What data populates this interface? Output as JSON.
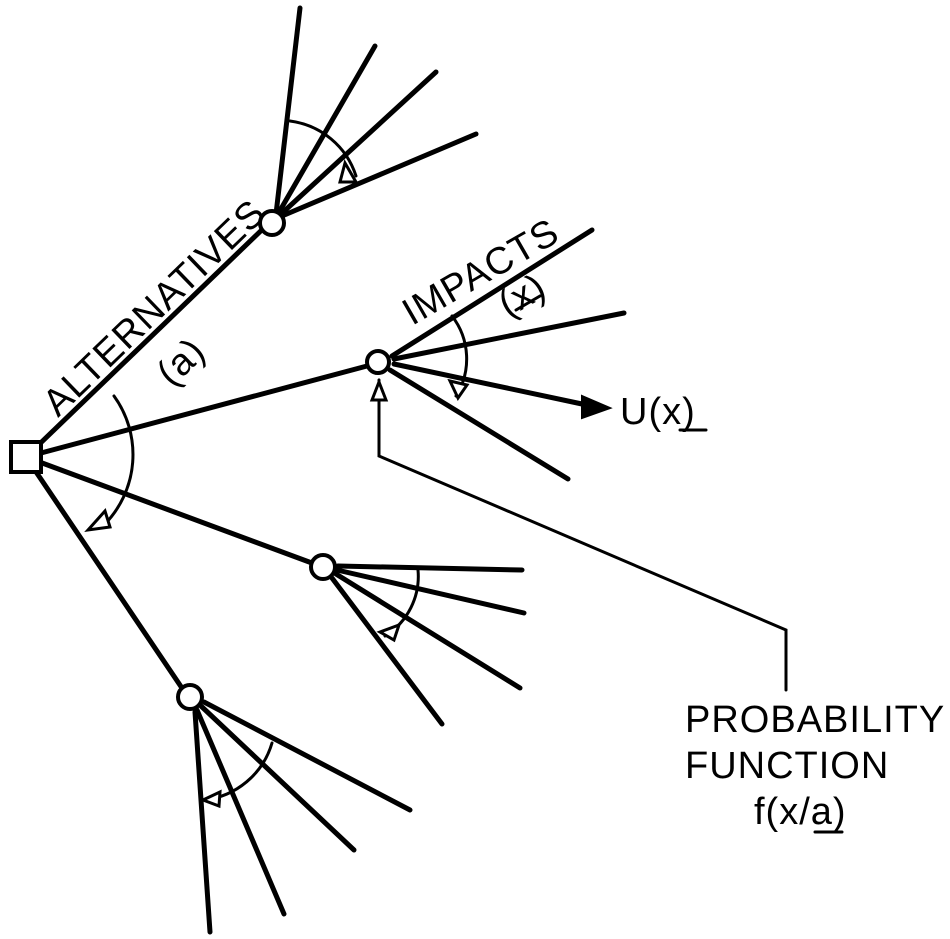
{
  "labels": {
    "alternatives": "ALTERNATIVES",
    "alternative_var": "(a)",
    "impacts": "IMPACTS",
    "impact_var": "(x)",
    "utility": "U(x)",
    "probability_line1": "PROBABILITY",
    "probability_line2": "FUNCTION",
    "probability_formula": "f(x/a)"
  }
}
